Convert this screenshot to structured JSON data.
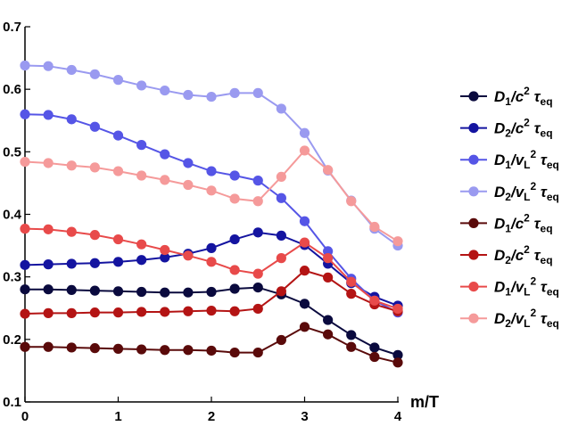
{
  "chart_data": {
    "type": "line",
    "xlabel": "m/T",
    "ylabel": "",
    "xlim": [
      0,
      4
    ],
    "ylim": [
      0.1,
      0.7
    ],
    "x_ticks": [
      "0",
      "1",
      "2",
      "3",
      "4"
    ],
    "y_ticks": [
      "0.1",
      "0.2",
      "0.3",
      "0.4",
      "0.5",
      "0.6",
      "0.7"
    ],
    "grid": false,
    "legend_position": "right",
    "x": [
      0,
      0.25,
      0.5,
      0.75,
      1.0,
      1.25,
      1.5,
      1.75,
      2.0,
      2.25,
      2.5,
      2.75,
      3.0,
      3.25,
      3.5,
      3.75,
      4.0
    ],
    "series": [
      {
        "name_main": "D",
        "name_sub": "1",
        "name_den": "/c",
        "name_sup": "2",
        "name_tau": " τ",
        "name_tau_sub": "eq",
        "color": "#0a0a3e",
        "values": [
          0.28,
          0.28,
          0.279,
          0.278,
          0.277,
          0.276,
          0.275,
          0.275,
          0.276,
          0.281,
          0.283,
          0.272,
          0.257,
          0.231,
          0.207,
          0.187,
          0.175
        ]
      },
      {
        "name_main": "D",
        "name_sub": "2",
        "name_den": "/c",
        "name_sup": "2",
        "name_tau": " τ",
        "name_tau_sub": "eq",
        "color": "#1414a0",
        "values": [
          0.319,
          0.32,
          0.321,
          0.322,
          0.324,
          0.327,
          0.331,
          0.337,
          0.346,
          0.36,
          0.371,
          0.366,
          0.351,
          0.321,
          0.29,
          0.268,
          0.254
        ]
      },
      {
        "name_main": "D",
        "name_sub": "1",
        "name_den": "/v",
        "name_den_sub": "L",
        "name_sup": "2",
        "name_tau": " τ",
        "name_tau_sub": "eq",
        "color": "#5555e6",
        "values": [
          0.56,
          0.559,
          0.552,
          0.54,
          0.526,
          0.511,
          0.496,
          0.482,
          0.469,
          0.462,
          0.454,
          0.426,
          0.389,
          0.341,
          0.297,
          0.262,
          0.243
        ]
      },
      {
        "name_main": "D",
        "name_sub": "2",
        "name_den": "/v",
        "name_den_sub": "L",
        "name_sup": "2",
        "name_tau": " τ",
        "name_tau_sub": "eq",
        "color": "#9a9af0",
        "values": [
          0.638,
          0.637,
          0.631,
          0.624,
          0.615,
          0.606,
          0.598,
          0.591,
          0.588,
          0.594,
          0.594,
          0.569,
          0.53,
          0.47,
          0.422,
          0.377,
          0.35
        ]
      },
      {
        "name_main": "D",
        "name_sub": "1",
        "name_den": "/c",
        "name_sup": "2",
        "name_tau": " τ",
        "name_tau_sub": "eq",
        "color": "#5a0a0a",
        "values": [
          0.188,
          0.188,
          0.187,
          0.186,
          0.185,
          0.184,
          0.183,
          0.183,
          0.182,
          0.179,
          0.179,
          0.199,
          0.22,
          0.208,
          0.188,
          0.172,
          0.163
        ]
      },
      {
        "name_main": "D",
        "name_sub": "2",
        "name_den": "/c",
        "name_sup": "2",
        "name_tau": " τ",
        "name_tau_sub": "eq",
        "color": "#b41414",
        "values": [
          0.241,
          0.242,
          0.242,
          0.243,
          0.243,
          0.244,
          0.244,
          0.245,
          0.246,
          0.245,
          0.249,
          0.277,
          0.31,
          0.299,
          0.273,
          0.256,
          0.245
        ]
      },
      {
        "name_main": "D",
        "name_sub": "1",
        "name_den": "/v",
        "name_den_sub": "L",
        "name_sup": "2",
        "name_tau": " τ",
        "name_tau_sub": "eq",
        "color": "#e84a4a",
        "values": [
          0.377,
          0.376,
          0.372,
          0.367,
          0.36,
          0.352,
          0.343,
          0.334,
          0.324,
          0.311,
          0.305,
          0.33,
          0.355,
          0.33,
          0.292,
          0.262,
          0.249
        ]
      },
      {
        "name_main": "D",
        "name_sub": "2",
        "name_den": "/v",
        "name_den_sub": "L",
        "name_sup": "2",
        "name_tau": " τ",
        "name_tau_sub": "eq",
        "color": "#f59a9a",
        "values": [
          0.484,
          0.482,
          0.478,
          0.475,
          0.469,
          0.462,
          0.455,
          0.447,
          0.438,
          0.425,
          0.421,
          0.46,
          0.502,
          0.471,
          0.421,
          0.38,
          0.357
        ]
      }
    ]
  }
}
